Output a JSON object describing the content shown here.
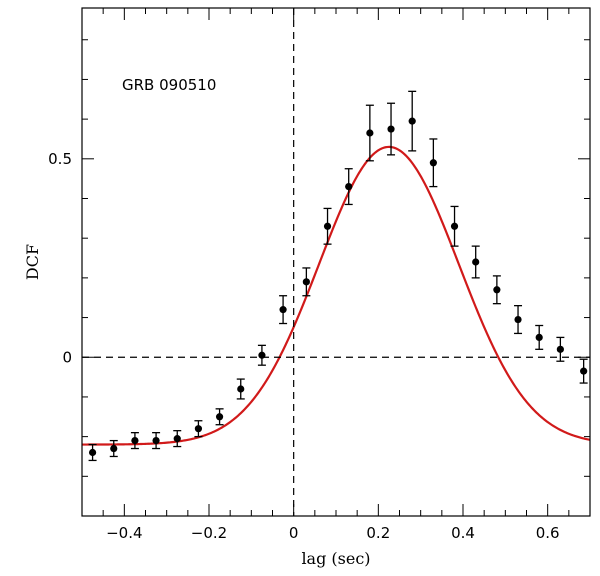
{
  "chart_data": {
    "type": "scatter",
    "title": "",
    "xlabel": "lag (sec)",
    "ylabel": "DCF",
    "annotation": "GRB 090510",
    "xlim": [
      -0.5,
      0.7
    ],
    "ylim": [
      -0.4,
      0.88
    ],
    "x_ticks_major": [
      -0.4,
      -0.2,
      0,
      0.2,
      0.4,
      0.6
    ],
    "x_tick_labels": [
      "−0.4",
      "−0.2",
      "0",
      "0.2",
      "0.4",
      "0.6"
    ],
    "y_ticks_major": [
      0,
      0.5
    ],
    "y_tick_labels": [
      "0",
      "0.5"
    ],
    "reference_lines": {
      "x": 0,
      "y": 0,
      "style": "dashed"
    },
    "grid": false,
    "series": [
      {
        "kind": "points-with-errorbars",
        "color": "#000000",
        "x": [
          -0.475,
          -0.425,
          -0.375,
          -0.325,
          -0.275,
          -0.225,
          -0.175,
          -0.125,
          -0.075,
          -0.025,
          0.03,
          0.08,
          0.13,
          0.18,
          0.23,
          0.28,
          0.33,
          0.38,
          0.43,
          0.48,
          0.53,
          0.58,
          0.63,
          0.685
        ],
        "y": [
          -0.24,
          -0.23,
          -0.21,
          -0.21,
          -0.205,
          -0.18,
          -0.15,
          -0.08,
          0.005,
          0.12,
          0.19,
          0.33,
          0.43,
          0.565,
          0.575,
          0.595,
          0.49,
          0.33,
          0.24,
          0.17,
          0.095,
          0.05,
          0.02,
          -0.035
        ],
        "yerr": [
          0.02,
          0.02,
          0.02,
          0.02,
          0.02,
          0.02,
          0.02,
          0.025,
          0.025,
          0.035,
          0.035,
          0.045,
          0.045,
          0.07,
          0.065,
          0.075,
          0.06,
          0.05,
          0.04,
          0.035,
          0.035,
          0.03,
          0.03,
          0.03
        ]
      },
      {
        "kind": "fit-curve",
        "color": "#d11a1a",
        "model": "gaussian-plus-constant",
        "amplitude": 0.75,
        "center": 0.225,
        "sigma": 0.165,
        "offset": -0.22
      }
    ]
  }
}
